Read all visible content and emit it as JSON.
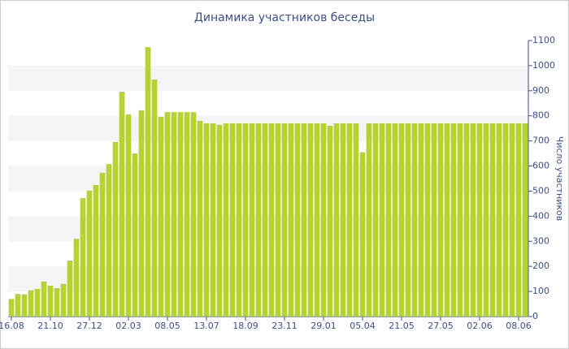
{
  "chart_data": {
    "type": "bar",
    "title": "Динамика участников беседы",
    "y_label": "Число участников",
    "categories": [
      "16.08",
      null,
      null,
      null,
      null,
      null,
      "21.10",
      null,
      null,
      null,
      null,
      null,
      "27.12",
      null,
      null,
      null,
      null,
      null,
      "02.03",
      null,
      null,
      null,
      null,
      null,
      "08.05",
      null,
      null,
      null,
      null,
      null,
      "13.07",
      null,
      null,
      null,
      null,
      null,
      "18.09",
      null,
      null,
      null,
      null,
      null,
      "23.11",
      null,
      null,
      null,
      null,
      null,
      "29.01",
      null,
      null,
      null,
      null,
      null,
      "05.04",
      null,
      null,
      null,
      null,
      null,
      "21.05",
      null,
      null,
      null,
      null,
      null,
      "27.05",
      null,
      null,
      null,
      null,
      null,
      "02.06",
      null,
      null,
      null,
      null,
      null,
      "08.06",
      null
    ],
    "values": [
      70,
      90,
      88,
      105,
      110,
      140,
      123,
      113,
      130,
      223,
      310,
      472,
      502,
      524,
      573,
      608,
      696,
      896,
      806,
      650,
      822,
      1074,
      945,
      796,
      815,
      815,
      815,
      815,
      815,
      780,
      770,
      770,
      764,
      770,
      770,
      770,
      770,
      770,
      770,
      770,
      770,
      770,
      770,
      770,
      770,
      770,
      770,
      770,
      770,
      760,
      770,
      770,
      770,
      770,
      655,
      770,
      770,
      770,
      770,
      770,
      770,
      770,
      770,
      770,
      770,
      770,
      770,
      770,
      770,
      770,
      770,
      770,
      770,
      770,
      770,
      770,
      770,
      770,
      770,
      770
    ],
    "color": "#b5d334",
    "ylim": [
      0,
      1100
    ],
    "yticks": [
      0,
      100,
      200,
      300,
      400,
      500,
      600,
      700,
      800,
      900,
      1000,
      1100
    ],
    "grid": true
  }
}
